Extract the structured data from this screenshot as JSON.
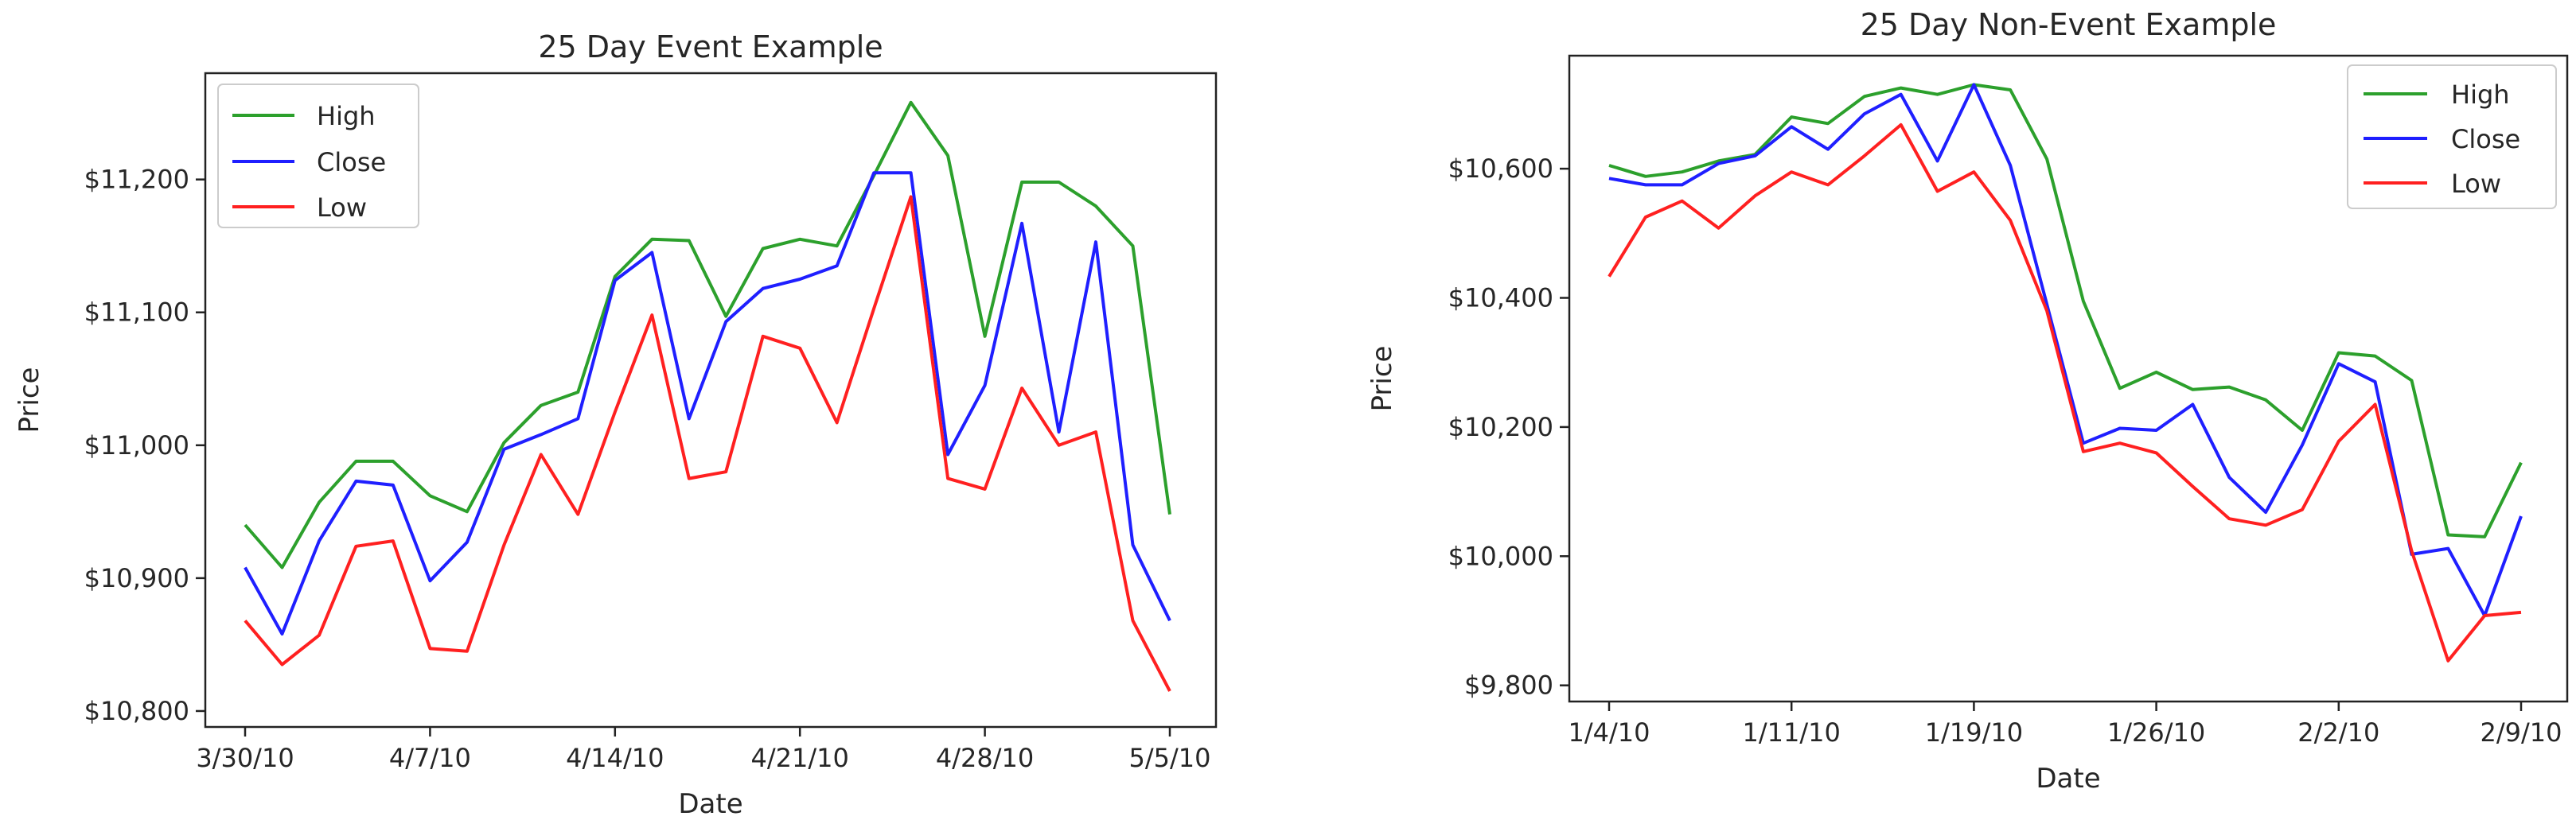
{
  "chart_data": [
    {
      "type": "line",
      "title": "25 Day Event Example",
      "xlabel": "Date",
      "ylabel": "Price",
      "x_tick_labels": [
        "3/30/10",
        "4/7/10",
        "4/14/10",
        "4/21/10",
        "4/28/10",
        "5/5/10"
      ],
      "y_ticks": [
        10800,
        10900,
        11000,
        11100,
        11200
      ],
      "y_tick_labels": [
        "$10,800",
        "$10,900",
        "$11,000",
        "$11,100",
        "$11,200"
      ],
      "ylim": [
        10788,
        11280
      ],
      "legend_position": "top-left",
      "grid": false,
      "series": [
        {
          "name": "High",
          "color": "#2ca02c",
          "values": [
            10940,
            10908,
            10957,
            10988,
            10988,
            10962,
            10950,
            11002,
            11030,
            11040,
            11127,
            11155,
            11154,
            11097,
            11148,
            11155,
            11150,
            11203,
            11258,
            11218,
            11082,
            11198,
            11198,
            11180,
            11150,
            10948
          ]
        },
        {
          "name": "Close",
          "color": "#1f1fff",
          "values": [
            10908,
            10858,
            10928,
            10973,
            10970,
            10898,
            10927,
            10997,
            11008,
            11020,
            11124,
            11145,
            11020,
            11093,
            11118,
            11125,
            11135,
            11205,
            11205,
            10993,
            11045,
            11167,
            11010,
            11153,
            10925,
            10868
          ]
        },
        {
          "name": "Low",
          "color": "#ff2020",
          "values": [
            10868,
            10835,
            10857,
            10924,
            10928,
            10847,
            10845,
            10925,
            10993,
            10948,
            11025,
            11098,
            10975,
            10980,
            11082,
            11073,
            11017,
            11103,
            11187,
            10975,
            10967,
            11043,
            11000,
            11010,
            10868,
            10815
          ]
        }
      ]
    },
    {
      "type": "line",
      "title": "25 Day Non-Event Example",
      "xlabel": "Date",
      "ylabel": "Price",
      "x_tick_labels": [
        "1/4/10",
        "1/11/10",
        "1/19/10",
        "1/26/10",
        "2/2/10",
        "2/9/10"
      ],
      "y_ticks": [
        9800,
        10000,
        10200,
        10400,
        10600
      ],
      "y_tick_labels": [
        "$9,800",
        "$10,000",
        "$10,200",
        "$10,400",
        "$10,600"
      ],
      "ylim": [
        9775,
        10775
      ],
      "legend_position": "top-right",
      "grid": false,
      "series": [
        {
          "name": "High",
          "color": "#2ca02c",
          "values": [
            10605,
            10588,
            10595,
            10612,
            10622,
            10680,
            10670,
            10712,
            10725,
            10715,
            10730,
            10722,
            10615,
            10395,
            10260,
            10285,
            10258,
            10262,
            10242,
            10195,
            10315,
            10310,
            10272,
            10033,
            10030,
            10145
          ]
        },
        {
          "name": "Close",
          "color": "#1f1fff",
          "values": [
            10585,
            10575,
            10575,
            10608,
            10620,
            10665,
            10630,
            10685,
            10715,
            10612,
            10730,
            10605,
            10390,
            10175,
            10198,
            10195,
            10235,
            10122,
            10068,
            10172,
            10298,
            10270,
            10003,
            10012,
            9908,
            10062
          ]
        },
        {
          "name": "Low",
          "color": "#ff2020",
          "values": [
            10433,
            10525,
            10550,
            10508,
            10558,
            10595,
            10575,
            10620,
            10668,
            10565,
            10595,
            10520,
            10380,
            10162,
            10175,
            10160,
            10108,
            10058,
            10048,
            10072,
            10178,
            10235,
            10008,
            9838,
            9908,
            9913
          ]
        }
      ]
    }
  ]
}
